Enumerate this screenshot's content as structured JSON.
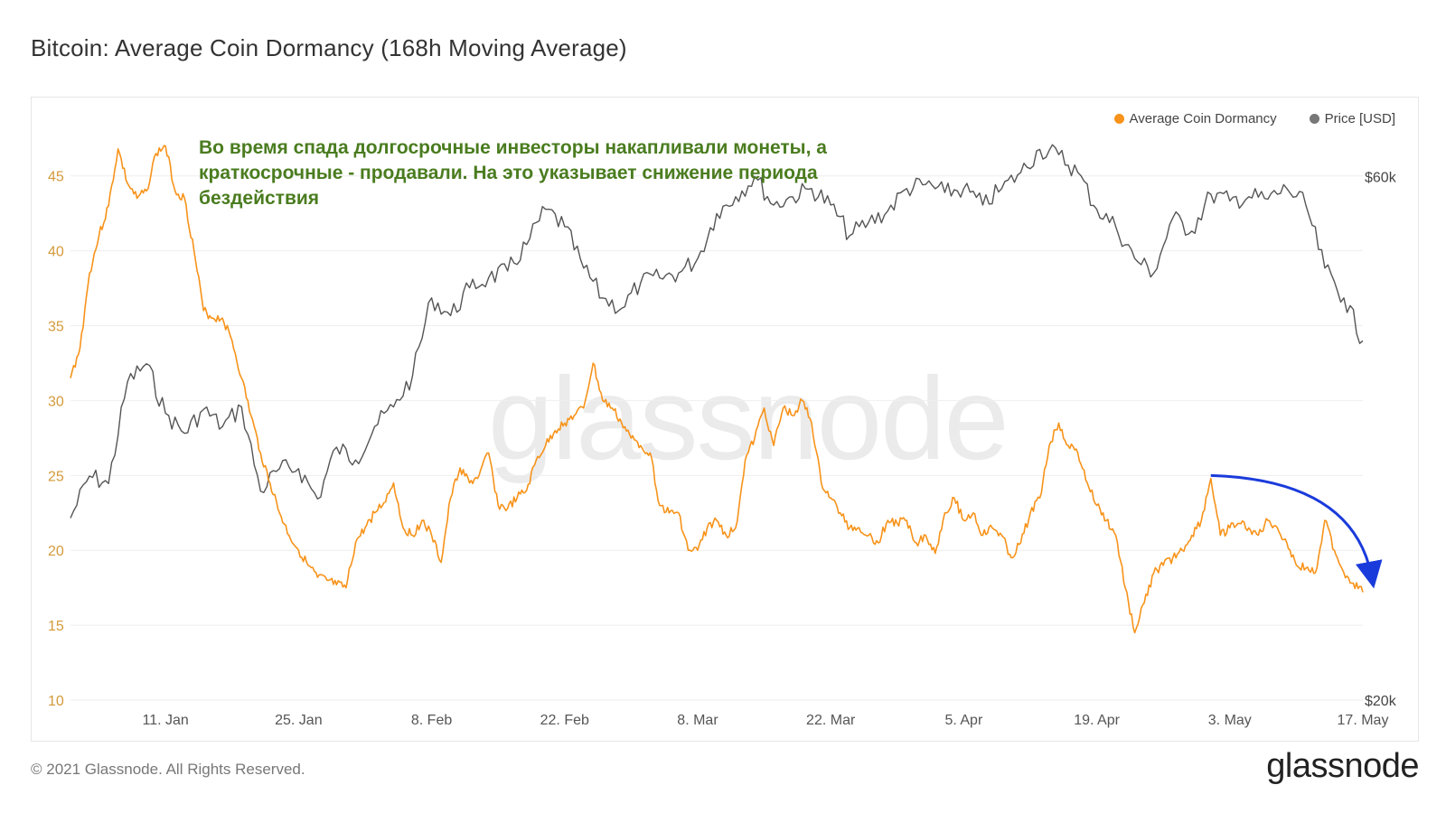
{
  "title": "Bitcoin: Average Coin Dormancy (168h Moving Average)",
  "legend": {
    "items": [
      {
        "label": "Average Coin Dormancy",
        "color": "#f7931a"
      },
      {
        "label": "Price [USD]",
        "color": "#777777"
      }
    ]
  },
  "annotation": "Во время спада долгосрочные инвесторы накапливали монеты, а краткосрочные - продавали. На это указывает снижение периода бездействия",
  "watermark": "glassnode",
  "footer": {
    "copyright": "© 2021 Glassnode. All Rights Reserved.",
    "logo": "glassnode"
  },
  "colors": {
    "dormancy": "#f7931a",
    "price": "#555555",
    "arrow": "#1a3bdb",
    "grid": "#eeeeee",
    "axis_left": "#d49a3a",
    "axis_right": "#444444"
  },
  "chart_data": {
    "type": "line",
    "x_ticks": [
      "11. Jan",
      "25. Jan",
      "8. Feb",
      "22. Feb",
      "8. Mar",
      "22. Mar",
      "5. Apr",
      "19. Apr",
      "3. May",
      "17. May"
    ],
    "x_range": [
      "2021-01-01",
      "2021-05-17"
    ],
    "y_left": {
      "label": "",
      "ticks": [
        10,
        15,
        20,
        25,
        30,
        35,
        40,
        45
      ],
      "range": [
        10,
        48
      ]
    },
    "y_right": {
      "label": "",
      "ticks": [
        "$20k",
        "$60k"
      ],
      "scale": "log",
      "range": [
        20000,
        66000
      ]
    },
    "series": [
      {
        "name": "Average Coin Dormancy",
        "axis": "left",
        "points": [
          [
            "2021-01-01",
            31.5
          ],
          [
            "2021-01-02",
            33.5
          ],
          [
            "2021-01-03",
            38.5
          ],
          [
            "2021-01-04",
            41.0
          ],
          [
            "2021-01-05",
            43.0
          ],
          [
            "2021-01-06",
            46.8
          ],
          [
            "2021-01-07",
            44.5
          ],
          [
            "2021-01-08",
            43.5
          ],
          [
            "2021-01-09",
            44.0
          ],
          [
            "2021-01-10",
            46.5
          ],
          [
            "2021-01-11",
            47.0
          ],
          [
            "2021-01-12",
            44.0
          ],
          [
            "2021-01-13",
            43.5
          ],
          [
            "2021-01-14",
            40.0
          ],
          [
            "2021-01-15",
            36.0
          ],
          [
            "2021-01-16",
            35.5
          ],
          [
            "2021-01-17",
            35.5
          ],
          [
            "2021-01-18",
            34.0
          ],
          [
            "2021-01-19",
            31.5
          ],
          [
            "2021-01-20",
            29.0
          ],
          [
            "2021-01-21",
            26.5
          ],
          [
            "2021-01-22",
            24.5
          ],
          [
            "2021-01-23",
            22.5
          ],
          [
            "2021-01-24",
            21.0
          ],
          [
            "2021-01-25",
            20.0
          ],
          [
            "2021-01-26",
            19.0
          ],
          [
            "2021-01-27",
            18.2
          ],
          [
            "2021-01-28",
            18.0
          ],
          [
            "2021-01-29",
            17.7
          ],
          [
            "2021-01-30",
            17.5
          ],
          [
            "2021-01-31",
            20.5
          ],
          [
            "2021-02-01",
            21.5
          ],
          [
            "2021-02-02",
            22.5
          ],
          [
            "2021-02-03",
            23.2
          ],
          [
            "2021-02-04",
            24.5
          ],
          [
            "2021-02-05",
            21.5
          ],
          [
            "2021-02-06",
            21.0
          ],
          [
            "2021-02-07",
            22.0
          ],
          [
            "2021-02-08",
            21.0
          ],
          [
            "2021-02-09",
            19.2
          ],
          [
            "2021-02-10",
            23.5
          ],
          [
            "2021-02-11",
            25.5
          ],
          [
            "2021-02-12",
            24.5
          ],
          [
            "2021-02-13",
            25.0
          ],
          [
            "2021-02-14",
            26.5
          ],
          [
            "2021-02-15",
            23.0
          ],
          [
            "2021-02-16",
            22.8
          ],
          [
            "2021-02-17",
            23.5
          ],
          [
            "2021-02-18",
            24.0
          ],
          [
            "2021-02-19",
            26.0
          ],
          [
            "2021-02-20",
            27.0
          ],
          [
            "2021-02-21",
            28.0
          ],
          [
            "2021-02-22",
            28.5
          ],
          [
            "2021-02-23",
            29.0
          ],
          [
            "2021-02-24",
            29.5
          ],
          [
            "2021-02-25",
            32.5
          ],
          [
            "2021-02-26",
            30.0
          ],
          [
            "2021-02-27",
            29.5
          ],
          [
            "2021-02-28",
            28.5
          ],
          [
            "2021-03-01",
            27.5
          ],
          [
            "2021-03-02",
            27.0
          ],
          [
            "2021-03-03",
            26.5
          ],
          [
            "2021-03-04",
            23.0
          ],
          [
            "2021-03-05",
            22.5
          ],
          [
            "2021-03-06",
            22.5
          ],
          [
            "2021-03-07",
            20.0
          ],
          [
            "2021-03-08",
            20.0
          ],
          [
            "2021-03-09",
            21.5
          ],
          [
            "2021-03-10",
            22.0
          ],
          [
            "2021-03-11",
            21.0
          ],
          [
            "2021-03-12",
            21.5
          ],
          [
            "2021-03-13",
            26.0
          ],
          [
            "2021-03-14",
            27.5
          ],
          [
            "2021-03-15",
            29.5
          ],
          [
            "2021-03-16",
            27.0
          ],
          [
            "2021-03-17",
            29.5
          ],
          [
            "2021-03-18",
            29.0
          ],
          [
            "2021-03-19",
            30.0
          ],
          [
            "2021-03-20",
            28.5
          ],
          [
            "2021-03-21",
            24.5
          ],
          [
            "2021-03-22",
            23.5
          ],
          [
            "2021-03-23",
            22.5
          ],
          [
            "2021-03-24",
            21.5
          ],
          [
            "2021-03-25",
            21.5
          ],
          [
            "2021-03-26",
            21.0
          ],
          [
            "2021-03-27",
            20.5
          ],
          [
            "2021-03-28",
            22.0
          ],
          [
            "2021-03-29",
            21.8
          ],
          [
            "2021-03-30",
            22.0
          ],
          [
            "2021-03-31",
            20.5
          ],
          [
            "2021-04-01",
            21.0
          ],
          [
            "2021-04-02",
            19.8
          ],
          [
            "2021-04-03",
            22.5
          ],
          [
            "2021-04-04",
            23.5
          ],
          [
            "2021-04-05",
            22.0
          ],
          [
            "2021-04-06",
            22.5
          ],
          [
            "2021-04-07",
            21.0
          ],
          [
            "2021-04-08",
            21.5
          ],
          [
            "2021-04-09",
            21.0
          ],
          [
            "2021-04-10",
            19.5
          ],
          [
            "2021-04-11",
            20.5
          ],
          [
            "2021-04-12",
            22.5
          ],
          [
            "2021-04-13",
            23.5
          ],
          [
            "2021-04-14",
            27.0
          ],
          [
            "2021-04-15",
            28.5
          ],
          [
            "2021-04-16",
            27.0
          ],
          [
            "2021-04-17",
            26.5
          ],
          [
            "2021-04-18",
            24.5
          ],
          [
            "2021-04-19",
            23.0
          ],
          [
            "2021-04-20",
            22.0
          ],
          [
            "2021-04-21",
            21.0
          ],
          [
            "2021-04-22",
            17.5
          ],
          [
            "2021-04-23",
            14.5
          ],
          [
            "2021-04-24",
            16.5
          ],
          [
            "2021-04-25",
            18.5
          ],
          [
            "2021-04-26",
            19.0
          ],
          [
            "2021-04-27",
            19.5
          ],
          [
            "2021-04-28",
            20.0
          ],
          [
            "2021-04-29",
            21.0
          ],
          [
            "2021-04-30",
            22.0
          ],
          [
            "2021-05-01",
            24.8
          ],
          [
            "2021-05-02",
            21.0
          ],
          [
            "2021-05-03",
            21.5
          ],
          [
            "2021-05-04",
            21.8
          ],
          [
            "2021-05-05",
            21.5
          ],
          [
            "2021-05-06",
            21.0
          ],
          [
            "2021-05-07",
            22.0
          ],
          [
            "2021-05-08",
            21.5
          ],
          [
            "2021-05-09",
            20.5
          ],
          [
            "2021-05-10",
            19.0
          ],
          [
            "2021-05-11",
            18.8
          ],
          [
            "2021-05-12",
            18.5
          ],
          [
            "2021-05-13",
            22.0
          ],
          [
            "2021-05-14",
            20.0
          ],
          [
            "2021-05-15",
            18.5
          ],
          [
            "2021-05-16",
            17.8
          ],
          [
            "2021-05-17",
            17.2
          ]
        ]
      },
      {
        "name": "Price [USD]",
        "axis": "right",
        "points": [
          [
            "2021-01-01",
            29300
          ],
          [
            "2021-01-03",
            32000
          ],
          [
            "2021-01-05",
            31500
          ],
          [
            "2021-01-07",
            39000
          ],
          [
            "2021-01-09",
            40500
          ],
          [
            "2021-01-11",
            36500
          ],
          [
            "2021-01-13",
            35000
          ],
          [
            "2021-01-15",
            36800
          ],
          [
            "2021-01-17",
            35500
          ],
          [
            "2021-01-19",
            37000
          ],
          [
            "2021-01-21",
            31000
          ],
          [
            "2021-01-23",
            32500
          ],
          [
            "2021-01-25",
            32500
          ],
          [
            "2021-01-27",
            30500
          ],
          [
            "2021-01-29",
            34000
          ],
          [
            "2021-01-31",
            33100
          ],
          [
            "2021-02-02",
            35500
          ],
          [
            "2021-02-04",
            37000
          ],
          [
            "2021-02-06",
            39500
          ],
          [
            "2021-02-08",
            46500
          ],
          [
            "2021-02-10",
            44800
          ],
          [
            "2021-02-12",
            47500
          ],
          [
            "2021-02-14",
            48500
          ],
          [
            "2021-02-16",
            49200
          ],
          [
            "2021-02-18",
            52000
          ],
          [
            "2021-02-20",
            56000
          ],
          [
            "2021-02-22",
            54000
          ],
          [
            "2021-02-24",
            49500
          ],
          [
            "2021-02-26",
            46500
          ],
          [
            "2021-02-28",
            45500
          ],
          [
            "2021-03-02",
            48000
          ],
          [
            "2021-03-04",
            48500
          ],
          [
            "2021-03-06",
            49000
          ],
          [
            "2021-03-08",
            50500
          ],
          [
            "2021-03-10",
            55500
          ],
          [
            "2021-03-12",
            57500
          ],
          [
            "2021-03-14",
            60000
          ],
          [
            "2021-03-16",
            56500
          ],
          [
            "2021-03-18",
            57500
          ],
          [
            "2021-03-20",
            58500
          ],
          [
            "2021-03-22",
            56500
          ],
          [
            "2021-03-24",
            53000
          ],
          [
            "2021-03-26",
            54500
          ],
          [
            "2021-03-28",
            55800
          ],
          [
            "2021-03-30",
            58500
          ],
          [
            "2021-04-01",
            59000
          ],
          [
            "2021-04-03",
            58000
          ],
          [
            "2021-04-05",
            58500
          ],
          [
            "2021-04-07",
            56500
          ],
          [
            "2021-04-09",
            58500
          ],
          [
            "2021-04-11",
            60500
          ],
          [
            "2021-04-13",
            63500
          ],
          [
            "2021-04-15",
            62800
          ],
          [
            "2021-04-17",
            60500
          ],
          [
            "2021-04-19",
            56000
          ],
          [
            "2021-04-21",
            54000
          ],
          [
            "2021-04-23",
            50500
          ],
          [
            "2021-04-25",
            49000
          ],
          [
            "2021-04-27",
            55000
          ],
          [
            "2021-04-29",
            53500
          ],
          [
            "2021-05-01",
            57800
          ],
          [
            "2021-05-03",
            57000
          ],
          [
            "2021-05-05",
            57500
          ],
          [
            "2021-05-07",
            57200
          ],
          [
            "2021-05-09",
            58500
          ],
          [
            "2021-05-11",
            56500
          ],
          [
            "2021-05-13",
            49500
          ],
          [
            "2021-05-15",
            46500
          ],
          [
            "2021-05-17",
            42500
          ]
        ]
      }
    ],
    "annotation_arrow": {
      "from": [
        "2021-05-01",
        25.0
      ],
      "to": [
        "2021-05-17",
        17.8
      ]
    },
    "legend_position": "top-right",
    "grid": true
  }
}
